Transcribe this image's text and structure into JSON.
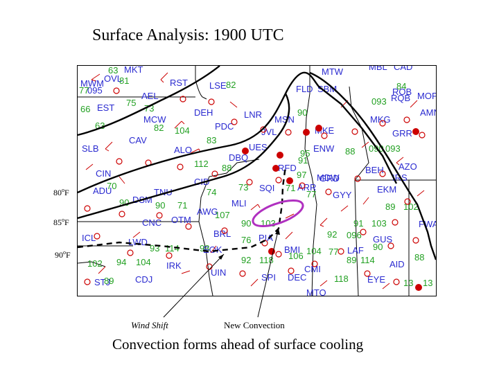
{
  "title": "Surface Analysis: 1900 UTC",
  "caption": "Convection forms ahead of surface cooling",
  "annotations": {
    "wind_shift": "Wind Shift",
    "new_convection": "New Convection"
  },
  "isotherms": [
    "80oF",
    "85oF",
    "90oF"
  ],
  "stations": [
    {
      "id": "MKT"
    },
    {
      "id": "RST"
    },
    {
      "id": "LSE"
    },
    {
      "id": "MWM"
    },
    {
      "id": "OVL"
    },
    {
      "id": "095"
    },
    {
      "id": "AEL"
    },
    {
      "id": "EST"
    },
    {
      "id": "MCW"
    },
    {
      "id": "DEH"
    },
    {
      "id": "PDC"
    },
    {
      "id": "LNR"
    },
    {
      "id": "MSN"
    },
    {
      "id": "FLD"
    },
    {
      "id": "SBM"
    },
    {
      "id": "MTW"
    },
    {
      "id": "MBL"
    },
    {
      "id": "CAD"
    },
    {
      "id": "ROB"
    },
    {
      "id": "MOP"
    },
    {
      "id": "AMN"
    },
    {
      "id": "MKG"
    },
    {
      "id": "GRR"
    },
    {
      "id": "SLB"
    },
    {
      "id": "CAV"
    },
    {
      "id": "ALO"
    },
    {
      "id": "DBQ"
    },
    {
      "id": "JVL"
    },
    {
      "id": "UES"
    },
    {
      "id": "MKE"
    },
    {
      "id": "ENW"
    },
    {
      "id": "RFD"
    },
    {
      "id": "MDW"
    },
    {
      "id": "SQI"
    },
    {
      "id": "ARR"
    },
    {
      "id": "MLI"
    },
    {
      "id": "CID"
    },
    {
      "id": "DSM"
    },
    {
      "id": "TNU"
    },
    {
      "id": "ADU"
    },
    {
      "id": "CIN"
    },
    {
      "id": "OTM"
    },
    {
      "id": "AWG"
    },
    {
      "id": "CNC"
    },
    {
      "id": "BRL"
    },
    {
      "id": "PIA"
    },
    {
      "id": "GYY"
    },
    {
      "id": "AZO"
    },
    {
      "id": "EKM"
    },
    {
      "id": "BEH"
    },
    {
      "id": "IRS"
    },
    {
      "id": "FWA"
    },
    {
      "id": "GUS"
    },
    {
      "id": "LAF"
    },
    {
      "id": "AID"
    },
    {
      "id": "BMI"
    },
    {
      "id": "CMI"
    },
    {
      "id": "DEC"
    },
    {
      "id": "SPI"
    },
    {
      "id": "UIN"
    },
    {
      "id": "EOK"
    },
    {
      "id": "IRK"
    },
    {
      "id": "CDJ"
    },
    {
      "id": "STJ"
    },
    {
      "id": "LWD"
    },
    {
      "id": "ICL"
    },
    {
      "id": "MTO"
    },
    {
      "id": "EYE"
    },
    {
      "id": "GRD"
    },
    {
      "id": "RQB"
    }
  ],
  "temperatures": [
    "63",
    "81",
    "77",
    "75",
    "73",
    "82",
    "88",
    "90",
    "91",
    "93",
    "94",
    "95",
    "100",
    "102",
    "103",
    "104",
    "106",
    "107",
    "112",
    "114",
    "118"
  ]
}
